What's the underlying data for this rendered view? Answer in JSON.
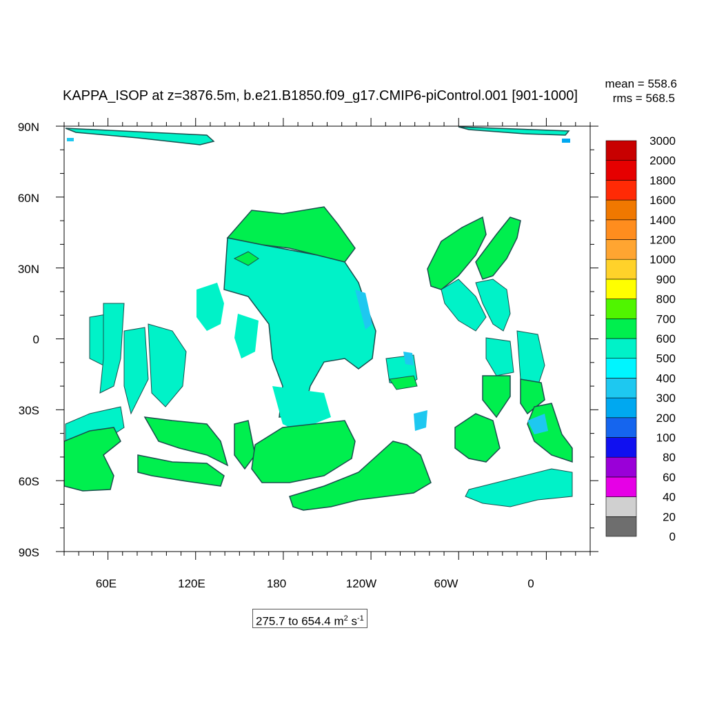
{
  "chart_data": {
    "type": "heatmap",
    "title": "KAPPA_ISOP at z=3876.5m, b.e21.B1850.f09_g17.CMIP6-piControl.001 [901-1000]",
    "stats": {
      "mean": "mean = 558.6",
      "rms": "rms = 568.5"
    },
    "x_ticks": [
      "60E",
      "120E",
      "180",
      "120W",
      "60W",
      "0"
    ],
    "y_ticks": [
      "90N",
      "60N",
      "30N",
      "0",
      "30S",
      "60S",
      "90S"
    ],
    "xlim": [
      "30E",
      "30E"
    ],
    "ylim": [
      "90S",
      "90N"
    ],
    "colorbar_levels": [
      "0",
      "20",
      "40",
      "60",
      "80",
      "100",
      "200",
      "300",
      "400",
      "500",
      "600",
      "700",
      "800",
      "900",
      "1000",
      "1200",
      "1400",
      "1600",
      "1800",
      "2000",
      "3000"
    ],
    "colorbar_colors": [
      "#6e6e6e",
      "#d0d0d0",
      "#e600e6",
      "#9a00d8",
      "#1010f0",
      "#1565ee",
      "#00a8f0",
      "#1ec8f0",
      "#00f5ff",
      "#00f2c8",
      "#00ef4e",
      "#50f500",
      "#ffff00",
      "#ffd22a",
      "#ffa531",
      "#ff8d1e",
      "#f07800",
      "#ff2a05",
      "#e60000",
      "#c80000"
    ],
    "range_label": {
      "min": "275.7",
      "to": "to",
      "max": "654.4",
      "unit_a": "m",
      "unit_a_sup": "2",
      "unit_b": "s",
      "unit_b_sup": "-1"
    },
    "grid": false
  }
}
